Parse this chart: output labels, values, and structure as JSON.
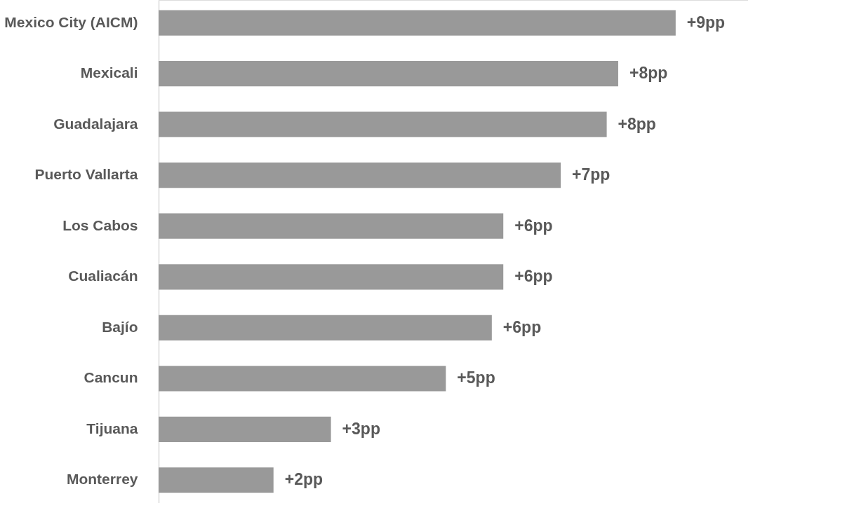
{
  "chart_data": {
    "type": "bar",
    "orientation": "horizontal",
    "categories": [
      "Mexico City (AICM)",
      "Mexicali",
      "Guadalajara",
      "Puerto Vallarta",
      "Los Cabos",
      "Cualiacán",
      "Bajío",
      "Cancun",
      "Tijuana",
      "Monterrey"
    ],
    "values": [
      9,
      8,
      7.8,
      7,
      6,
      6,
      5.8,
      5,
      3,
      2
    ],
    "value_labels": [
      "+9pp",
      "+8pp",
      "+8pp",
      "+7pp",
      "+6pp",
      "+6pp",
      "+6pp",
      "+5pp",
      "+3pp",
      "+2pp"
    ],
    "color": "#999999",
    "grid": false,
    "tick_labels": "y"
  }
}
